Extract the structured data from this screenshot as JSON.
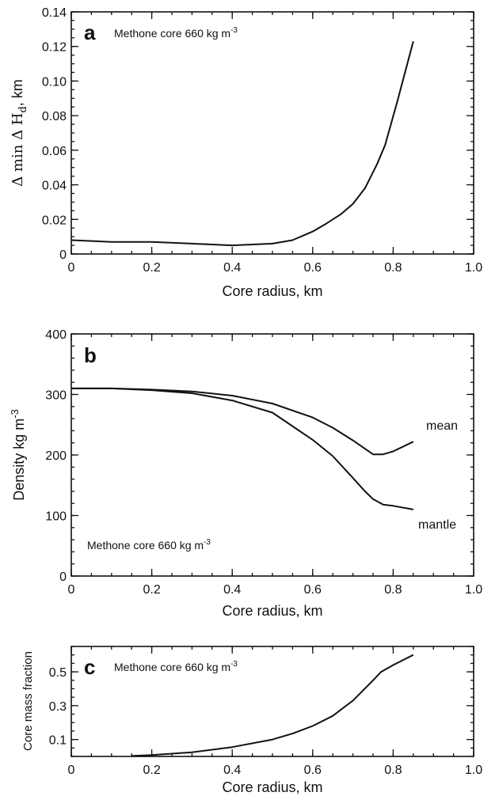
{
  "chart_data": [
    {
      "type": "line",
      "panel_letter": "a",
      "note": "Methone core 660 kg m",
      "note_sup": "-3",
      "xlabel": "Core radius, km",
      "ylabel": "Δ min Δ H",
      "ylabel_sub": "d",
      "ylabel_suffix": ", km",
      "xlim": [
        0,
        1.0
      ],
      "ylim": [
        0,
        0.14
      ],
      "x_ticks": [
        0,
        0.2,
        0.4,
        0.6,
        0.8,
        1.0
      ],
      "x_tick_labels": [
        "0",
        "0.2",
        "0.4",
        "0.6",
        "0.8",
        "1.0"
      ],
      "y_ticks": [
        0,
        0.02,
        0.04,
        0.06,
        0.08,
        0.1,
        0.12,
        0.14
      ],
      "y_tick_labels": [
        "0",
        "0.02",
        "0.04",
        "0.06",
        "0.08",
        "0.10",
        "0.12",
        "0.14"
      ],
      "series": [
        {
          "x": [
            0,
            0.1,
            0.2,
            0.3,
            0.35,
            0.4,
            0.45,
            0.5,
            0.55,
            0.6,
            0.63,
            0.67,
            0.7,
            0.73,
            0.76,
            0.78,
            0.81,
            0.85
          ],
          "y": [
            0.008,
            0.007,
            0.007,
            0.006,
            0.0055,
            0.005,
            0.0055,
            0.006,
            0.008,
            0.013,
            0.017,
            0.023,
            0.029,
            0.038,
            0.052,
            0.063,
            0.088,
            0.123
          ]
        }
      ]
    },
    {
      "type": "line",
      "panel_letter": "b",
      "note": "Methone core 660 kg m",
      "note_sup": "-3",
      "xlabel": "Core radius, km",
      "ylabel": "Density kg m",
      "ylabel_sup": "-3",
      "xlim": [
        0,
        1.0
      ],
      "ylim": [
        0,
        400
      ],
      "x_ticks": [
        0,
        0.2,
        0.4,
        0.6,
        0.8,
        1.0
      ],
      "x_tick_labels": [
        "0",
        "0.2",
        "0.4",
        "0.6",
        "0.8",
        "1.0"
      ],
      "y_ticks": [
        0,
        100,
        200,
        300,
        400
      ],
      "y_tick_labels": [
        "0",
        "100",
        "200",
        "300",
        "400"
      ],
      "series": [
        {
          "name": "mean",
          "x": [
            0,
            0.1,
            0.2,
            0.3,
            0.4,
            0.5,
            0.6,
            0.65,
            0.7,
            0.75,
            0.775,
            0.8,
            0.85
          ],
          "y": [
            310,
            310,
            308,
            305,
            298,
            285,
            262,
            245,
            224,
            201,
            201,
            206,
            222
          ]
        },
        {
          "name": "mantle",
          "x": [
            0,
            0.1,
            0.2,
            0.3,
            0.4,
            0.5,
            0.6,
            0.65,
            0.7,
            0.73,
            0.75,
            0.775,
            0.8,
            0.85
          ],
          "y": [
            310,
            310,
            307,
            302,
            290,
            270,
            225,
            198,
            162,
            140,
            127,
            118,
            116,
            110
          ]
        }
      ]
    },
    {
      "type": "line",
      "panel_letter": "c",
      "note": "Methone core 660 kg m",
      "note_sup": "-3",
      "xlabel": "Core radius, km",
      "ylabel": "Core mass fraction",
      "xlim": [
        0,
        1.0
      ],
      "ylim": [
        0,
        0.65
      ],
      "x_ticks": [
        0,
        0.2,
        0.4,
        0.6,
        0.8,
        1.0
      ],
      "x_tick_labels": [
        "0",
        "0.2",
        "0.4",
        "0.6",
        "0.8",
        "1.0"
      ],
      "y_ticks": [
        0.1,
        0.3,
        0.5
      ],
      "y_tick_labels": [
        "0.1",
        "0.3",
        "0.5"
      ],
      "series": [
        {
          "x": [
            0.15,
            0.2,
            0.3,
            0.4,
            0.5,
            0.55,
            0.6,
            0.65,
            0.7,
            0.75,
            0.77,
            0.8,
            0.85
          ],
          "y": [
            0.003,
            0.008,
            0.025,
            0.055,
            0.1,
            0.135,
            0.18,
            0.24,
            0.33,
            0.45,
            0.5,
            0.54,
            0.6
          ]
        }
      ]
    }
  ]
}
